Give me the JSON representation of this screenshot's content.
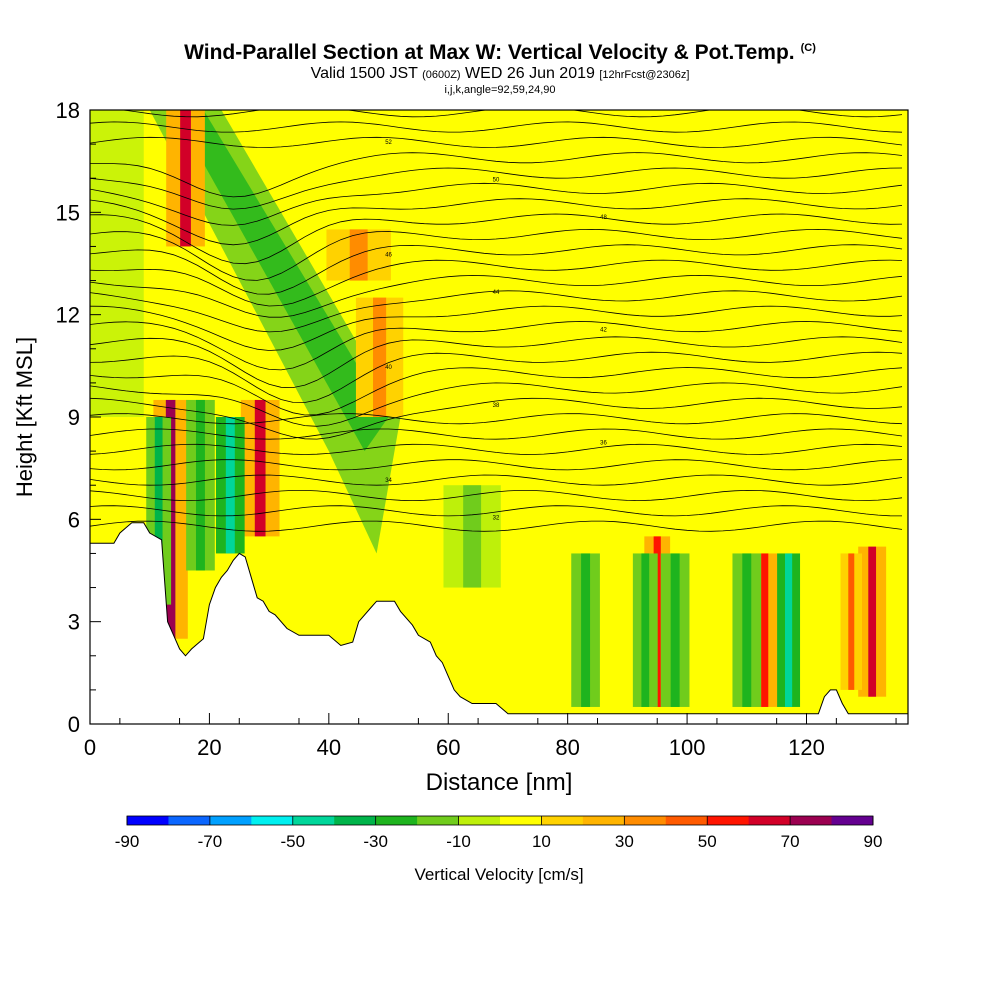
{
  "header": {
    "title": "Wind-Parallel Section at Max W: Vertical Velocity & Pot.Temp.",
    "copyright": "(C)",
    "valid_prefix": "Valid 1500 JST",
    "valid_utc": "(0600Z)",
    "valid_date": "WED 26 Jun 2019",
    "forecast": "[12hrFcst@2306z]",
    "indices": "i,j,k,angle=92,59,24,90"
  },
  "chart_data": {
    "type": "heatmap",
    "xlabel": "Distance [nm]",
    "ylabel": "Height [Kft MSL]",
    "xlim": [
      0,
      137
    ],
    "ylim": [
      0,
      18
    ],
    "x_ticks": [
      0,
      20,
      40,
      60,
      80,
      100,
      120
    ],
    "y_ticks": [
      0,
      3,
      6,
      9,
      12,
      15,
      18
    ],
    "colorbar": {
      "label": "Vertical Velocity [cm/s]",
      "tick_labels": [
        -90,
        -70,
        -50,
        -30,
        -10,
        10,
        30,
        50,
        70,
        90
      ],
      "colors": [
        "#0000ff",
        "#0a66ff",
        "#00a0ff",
        "#00f0f0",
        "#00d69a",
        "#00b44a",
        "#1eb41e",
        "#70cc1c",
        "#bef00a",
        "#ffff00",
        "#ffd200",
        "#ffb400",
        "#ff8c00",
        "#ff5a00",
        "#ff1400",
        "#d20028",
        "#9b0050",
        "#640090"
      ]
    },
    "updrafts": [
      {
        "x": 13.5,
        "y0": 2.5,
        "y1": 9.5,
        "w": 1.6,
        "value": 70
      },
      {
        "x": 16,
        "y0": 14,
        "y1": 18,
        "w": 1.8,
        "value": 60
      },
      {
        "x": 28.5,
        "y0": 5.5,
        "y1": 9.5,
        "w": 1.8,
        "value": 60
      },
      {
        "x": 95,
        "y0": 0.5,
        "y1": 5.5,
        "w": 1.2,
        "value": 50
      },
      {
        "x": 113,
        "y0": 0.5,
        "y1": 5,
        "w": 1.2,
        "value": 50
      },
      {
        "x": 131,
        "y0": 0.8,
        "y1": 5.2,
        "w": 1.3,
        "value": 60
      },
      {
        "x": 127.5,
        "y0": 1,
        "y1": 5,
        "w": 1,
        "value": 40
      },
      {
        "x": 48.5,
        "y0": 9,
        "y1": 12.5,
        "w": 2.2,
        "value": 30
      },
      {
        "x": 45,
        "y0": 13,
        "y1": 14.5,
        "w": 3,
        "value": 30
      }
    ],
    "downdrafts": [
      {
        "x": 11.5,
        "y0": 3.5,
        "y1": 9,
        "w": 1.3,
        "value": -40
      },
      {
        "x": 23.5,
        "y0": 5,
        "y1": 9,
        "w": 1.5,
        "value": -50
      },
      {
        "x": 18.5,
        "y0": 4.5,
        "y1": 9.5,
        "w": 1.5,
        "value": -30
      },
      {
        "x": 83,
        "y0": 0.5,
        "y1": 5,
        "w": 1.5,
        "value": -30
      },
      {
        "x": 93,
        "y0": 0.5,
        "y1": 5,
        "w": 1.3,
        "value": -30
      },
      {
        "x": 98,
        "y0": 0.5,
        "y1": 5,
        "w": 1.5,
        "value": -30
      },
      {
        "x": 117,
        "y0": 0.5,
        "y1": 5,
        "w": 1.2,
        "value": -50
      },
      {
        "x": 110,
        "y0": 0.5,
        "y1": 5,
        "w": 1.5,
        "value": -30
      },
      {
        "x": 64,
        "y0": 4,
        "y1": 7,
        "w": 3,
        "value": -20
      }
    ],
    "terrain": [
      [
        0,
        5.3
      ],
      [
        4,
        5.3
      ],
      [
        5,
        5.6
      ],
      [
        7,
        5.9
      ],
      [
        9,
        5.9
      ],
      [
        10,
        5.6
      ],
      [
        12,
        5.4
      ],
      [
        13,
        3
      ],
      [
        14,
        2.6
      ],
      [
        15,
        2.2
      ],
      [
        16,
        2.0
      ],
      [
        17,
        2.2
      ],
      [
        19,
        2.5
      ],
      [
        20,
        3.5
      ],
      [
        21,
        4
      ],
      [
        22,
        4.3
      ],
      [
        23,
        4.5
      ],
      [
        24,
        4.8
      ],
      [
        25,
        5.0
      ],
      [
        26,
        4.9
      ],
      [
        27,
        4.3
      ],
      [
        28,
        3.7
      ],
      [
        29,
        3.6
      ],
      [
        30,
        3.3
      ],
      [
        31,
        3.2
      ],
      [
        33,
        2.8
      ],
      [
        35,
        2.6
      ],
      [
        38,
        2.6
      ],
      [
        40,
        2.6
      ],
      [
        42,
        2.3
      ],
      [
        44,
        2.4
      ],
      [
        45,
        3.0
      ],
      [
        47,
        3.4
      ],
      [
        48,
        3.6
      ],
      [
        51,
        3.6
      ],
      [
        52,
        3.3
      ],
      [
        54,
        2.9
      ],
      [
        55,
        2.6
      ],
      [
        57,
        2.4
      ],
      [
        58,
        2.0
      ],
      [
        59,
        1.8
      ],
      [
        60,
        1.4
      ],
      [
        61,
        1.0
      ],
      [
        62,
        0.8
      ],
      [
        64,
        0.6
      ],
      [
        66,
        0.6
      ],
      [
        68,
        0.6
      ],
      [
        70,
        0.3
      ],
      [
        122,
        0.3
      ],
      [
        123,
        0.8
      ],
      [
        124,
        1.0
      ],
      [
        125,
        1.0
      ],
      [
        126,
        0.6
      ],
      [
        127,
        0.3
      ],
      [
        137,
        0.3
      ]
    ],
    "isentrope_labels": [
      "52",
      "50",
      "48",
      "46",
      "44",
      "42",
      "40",
      "38",
      "36",
      "34",
      "32"
    ]
  }
}
